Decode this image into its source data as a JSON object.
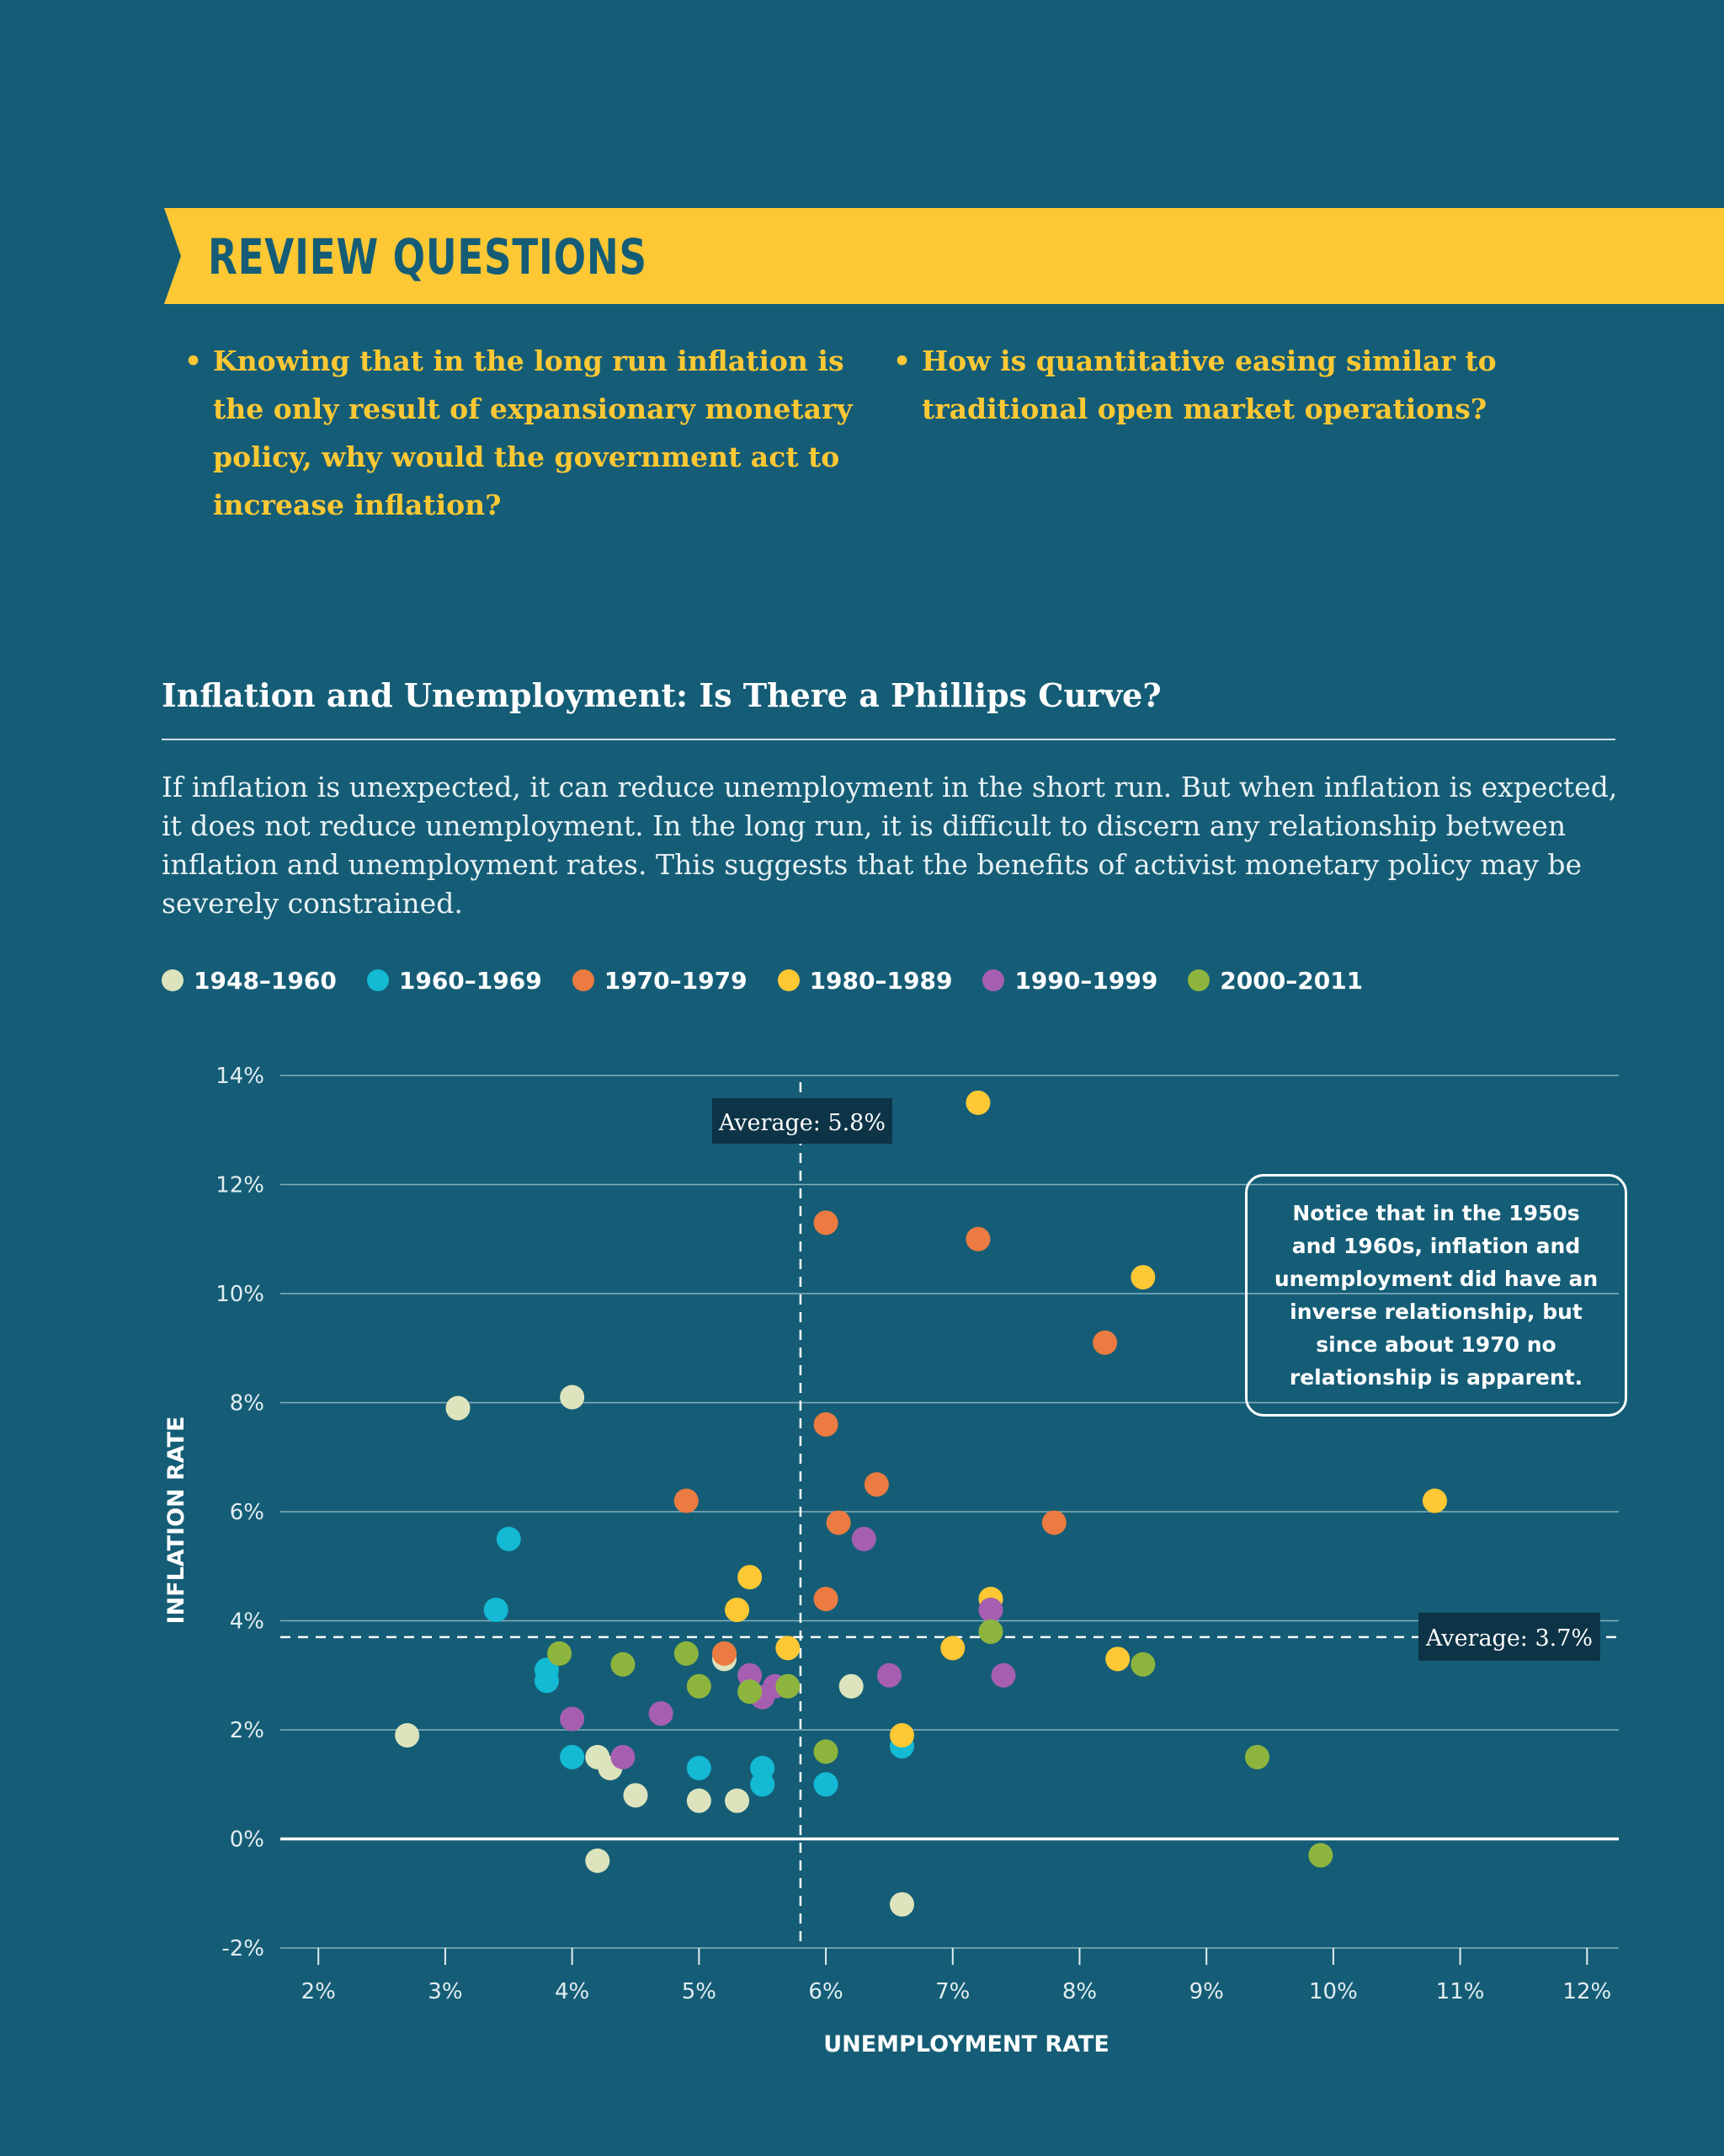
{
  "review": {
    "title": "REVIEW QUESTIONS",
    "questions": [
      "Knowing that in the long run inflation is the only result of expansionary monetary policy, why would the government act to increase inflation?",
      "How is quantitative easing similar to traditional open market operations?"
    ]
  },
  "section": {
    "title": "Inflation and Unemployment: Is There a Phillips Curve?",
    "body": "If inflation is unexpected, it can reduce unemployment in the short run. But when inflation is expected, it does not reduce unemployment. In the long run, it is difficult to discern any relationship between inflation and unemployment rates. This suggests that the benefits of activist monetary policy may be severely constrained."
  },
  "callout": "Notice that in the 1950s and 1960s, inflation and unemployment did have an inverse relationship, but since about 1970 no relationship is apparent.",
  "colors": {
    "background": "#155d76",
    "banner": "#fdc834",
    "1948–1960": "#dde4bd",
    "1960–1969": "#14b9d3",
    "1970–1979": "#eb7b40",
    "1980–1989": "#fdc834",
    "1990–1999": "#a65fb0",
    "2000–2011": "#8db53e"
  },
  "chart_data": {
    "type": "scatter",
    "xlabel": "UNEMPLOYMENT RATE",
    "ylabel": "INFLATION RATE",
    "xlim": [
      1.7,
      12.25
    ],
    "ylim": [
      -2,
      14
    ],
    "xticks": [
      "2%",
      "3%",
      "4%",
      "5%",
      "6%",
      "7%",
      "8%",
      "9%",
      "10%",
      "11%",
      "12%"
    ],
    "yticks": [
      "-2%",
      "0%",
      "2%",
      "4%",
      "6%",
      "8%",
      "10%",
      "12%",
      "14%"
    ],
    "grid": true,
    "legend_position": "top-left",
    "averages": [
      {
        "axis": "x",
        "value": 5.8,
        "label": "Average: 5.8%"
      },
      {
        "axis": "y",
        "value": 3.7,
        "label": "Average: 3.7%"
      }
    ],
    "series": [
      {
        "name": "1948–1960",
        "points": [
          [
            3.1,
            7.9
          ],
          [
            4.0,
            8.1
          ],
          [
            2.7,
            1.9
          ],
          [
            4.2,
            1.5
          ],
          [
            4.3,
            1.3
          ],
          [
            4.5,
            0.8
          ],
          [
            5.0,
            0.7
          ],
          [
            5.3,
            0.7
          ],
          [
            5.2,
            3.3
          ],
          [
            6.2,
            2.8
          ],
          [
            4.2,
            -0.4
          ],
          [
            6.6,
            -1.2
          ]
        ]
      },
      {
        "name": "1960–1969",
        "points": [
          [
            3.5,
            5.5
          ],
          [
            3.4,
            4.2
          ],
          [
            3.8,
            3.1
          ],
          [
            3.8,
            2.9
          ],
          [
            4.0,
            1.5
          ],
          [
            5.0,
            1.3
          ],
          [
            5.5,
            1.3
          ],
          [
            5.5,
            1.0
          ],
          [
            6.0,
            1.0
          ],
          [
            6.6,
            1.7
          ]
        ]
      },
      {
        "name": "1970–1979",
        "points": [
          [
            6.0,
            11.3
          ],
          [
            7.2,
            11.0
          ],
          [
            8.2,
            9.1
          ],
          [
            6.0,
            7.6
          ],
          [
            6.4,
            6.5
          ],
          [
            4.9,
            6.2
          ],
          [
            6.1,
            5.8
          ],
          [
            7.8,
            5.8
          ],
          [
            6.0,
            4.4
          ],
          [
            5.2,
            3.4
          ]
        ]
      },
      {
        "name": "1980–1989",
        "points": [
          [
            7.2,
            13.5
          ],
          [
            8.5,
            10.3
          ],
          [
            10.8,
            6.2
          ],
          [
            5.4,
            4.8
          ],
          [
            5.3,
            4.2
          ],
          [
            7.3,
            4.4
          ],
          [
            7.0,
            3.5
          ],
          [
            5.7,
            3.5
          ],
          [
            8.3,
            3.3
          ],
          [
            6.6,
            1.9
          ]
        ]
      },
      {
        "name": "1990–1999",
        "points": [
          [
            6.3,
            5.5
          ],
          [
            7.3,
            4.2
          ],
          [
            5.4,
            3.0
          ],
          [
            6.5,
            3.0
          ],
          [
            7.4,
            3.0
          ],
          [
            5.6,
            2.8
          ],
          [
            5.5,
            2.6
          ],
          [
            4.7,
            2.3
          ],
          [
            4.0,
            2.2
          ],
          [
            4.4,
            1.5
          ]
        ]
      },
      {
        "name": "2000–2011",
        "points": [
          [
            7.3,
            3.8
          ],
          [
            3.9,
            3.4
          ],
          [
            4.9,
            3.4
          ],
          [
            4.4,
            3.2
          ],
          [
            8.5,
            3.2
          ],
          [
            5.0,
            2.8
          ],
          [
            5.4,
            2.7
          ],
          [
            5.7,
            2.8
          ],
          [
            6.0,
            1.6
          ],
          [
            9.4,
            1.5
          ],
          [
            9.9,
            -0.3
          ]
        ]
      }
    ]
  }
}
